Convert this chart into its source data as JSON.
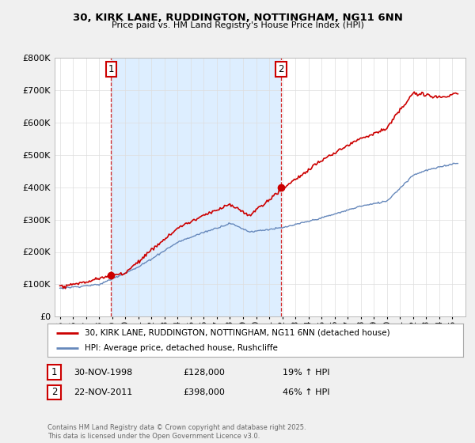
{
  "title_line1": "30, KIRK LANE, RUDDINGTON, NOTTINGHAM, NG11 6NN",
  "title_line2": "Price paid vs. HM Land Registry's House Price Index (HPI)",
  "legend_label_red": "30, KIRK LANE, RUDDINGTON, NOTTINGHAM, NG11 6NN (detached house)",
  "legend_label_blue": "HPI: Average price, detached house, Rushcliffe",
  "annotation1_date": "30-NOV-1998",
  "annotation1_price": "£128,000",
  "annotation1_hpi": "19% ↑ HPI",
  "annotation2_date": "22-NOV-2011",
  "annotation2_price": "£398,000",
  "annotation2_hpi": "46% ↑ HPI",
  "footer": "Contains HM Land Registry data © Crown copyright and database right 2025.\nThis data is licensed under the Open Government Licence v3.0.",
  "ylim": [
    0,
    800000
  ],
  "yticks": [
    0,
    100000,
    200000,
    300000,
    400000,
    500000,
    600000,
    700000,
    800000
  ],
  "background_color": "#f0f0f0",
  "plot_background": "#ffffff",
  "red_color": "#cc0000",
  "blue_color": "#6688bb",
  "shade_color": "#ddeeff",
  "grid_color": "#dddddd",
  "sale1_year": 1998.92,
  "sale1_price": 128000,
  "sale2_year": 2011.9,
  "sale2_price": 398000,
  "xstart": 1995,
  "xend": 2025
}
